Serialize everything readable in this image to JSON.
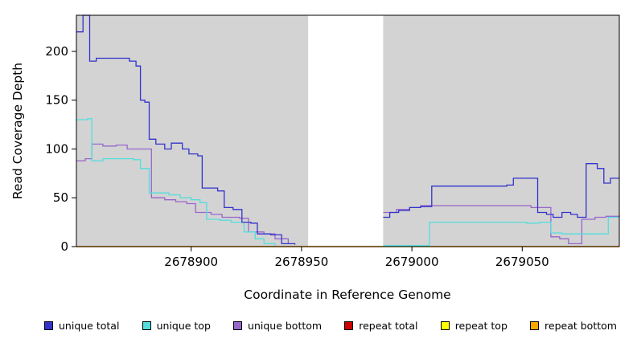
{
  "chart_data": {
    "type": "line",
    "title": "",
    "xlabel": "Coordinate in Reference Genome",
    "ylabel": "Read Coverage Depth",
    "xlim": [
      2678848,
      2679094
    ],
    "ylim": [
      0,
      237
    ],
    "x_ticks": [
      2678900,
      2678950,
      2679000,
      2679050
    ],
    "y_ticks": [
      0,
      50,
      100,
      150,
      200
    ],
    "plot_bg": "#d3d3d3",
    "gap_region": [
      2678953,
      2678987
    ],
    "grid": false,
    "legend_position": "bottom",
    "series": [
      {
        "name": "repeat total",
        "color": "#cc0000",
        "points": [
          [
            2678848,
            0
          ],
          [
            2679094,
            0
          ]
        ]
      },
      {
        "name": "repeat top",
        "color": "#ffff00",
        "points": [
          [
            2678848,
            0
          ],
          [
            2679094,
            0
          ]
        ]
      },
      {
        "name": "repeat bottom",
        "color": "#ffa500",
        "points": [
          [
            2678848,
            0
          ],
          [
            2679094,
            0
          ]
        ]
      },
      {
        "name": "unique bottom",
        "color": "#9966cc",
        "points": [
          [
            2678848,
            88
          ],
          [
            2678852,
            90
          ],
          [
            2678855,
            105
          ],
          [
            2678860,
            103
          ],
          [
            2678866,
            104
          ],
          [
            2678871,
            100
          ],
          [
            2678880,
            100
          ],
          [
            2678882,
            50
          ],
          [
            2678888,
            48
          ],
          [
            2678893,
            46
          ],
          [
            2678898,
            44
          ],
          [
            2678902,
            35
          ],
          [
            2678909,
            33
          ],
          [
            2678914,
            30
          ],
          [
            2678922,
            29
          ],
          [
            2678926,
            15
          ],
          [
            2678933,
            13
          ],
          [
            2678938,
            8
          ],
          [
            2678944,
            3
          ],
          [
            2678953,
            null
          ],
          [
            2678987,
            35
          ],
          [
            2678993,
            38
          ],
          [
            2678999,
            40
          ],
          [
            2679004,
            42
          ],
          [
            2679049,
            42
          ],
          [
            2679054,
            40
          ],
          [
            2679061,
            40
          ],
          [
            2679063,
            10
          ],
          [
            2679067,
            8
          ],
          [
            2679071,
            3
          ],
          [
            2679077,
            28
          ],
          [
            2679083,
            30
          ],
          [
            2679088,
            31
          ],
          [
            2679094,
            32
          ]
        ]
      },
      {
        "name": "unique top",
        "color": "#55dddd",
        "points": [
          [
            2678848,
            130
          ],
          [
            2678853,
            131
          ],
          [
            2678855,
            88
          ],
          [
            2678860,
            90
          ],
          [
            2678874,
            89
          ],
          [
            2678877,
            80
          ],
          [
            2678881,
            55
          ],
          [
            2678890,
            53
          ],
          [
            2678895,
            50
          ],
          [
            2678900,
            48
          ],
          [
            2678904,
            45
          ],
          [
            2678907,
            28
          ],
          [
            2678913,
            27
          ],
          [
            2678918,
            25
          ],
          [
            2678924,
            15
          ],
          [
            2678929,
            8
          ],
          [
            2678933,
            3
          ],
          [
            2678938,
            1
          ],
          [
            2678953,
            null
          ],
          [
            2678987,
            1
          ],
          [
            2679006,
            1
          ],
          [
            2679008,
            25
          ],
          [
            2679048,
            25
          ],
          [
            2679052,
            24
          ],
          [
            2679058,
            25
          ],
          [
            2679063,
            14
          ],
          [
            2679068,
            13
          ],
          [
            2679086,
            13
          ],
          [
            2679089,
            30
          ],
          [
            2679094,
            30
          ]
        ]
      },
      {
        "name": "unique total",
        "color": "#3333cc",
        "points": [
          [
            2678848,
            220
          ],
          [
            2678851,
            237
          ],
          [
            2678854,
            190
          ],
          [
            2678857,
            193
          ],
          [
            2678872,
            190
          ],
          [
            2678875,
            185
          ],
          [
            2678877,
            150
          ],
          [
            2678879,
            148
          ],
          [
            2678881,
            110
          ],
          [
            2678884,
            105
          ],
          [
            2678888,
            100
          ],
          [
            2678891,
            106
          ],
          [
            2678896,
            100
          ],
          [
            2678899,
            95
          ],
          [
            2678903,
            93
          ],
          [
            2678905,
            60
          ],
          [
            2678912,
            57
          ],
          [
            2678915,
            40
          ],
          [
            2678919,
            38
          ],
          [
            2678923,
            25
          ],
          [
            2678927,
            24
          ],
          [
            2678930,
            13
          ],
          [
            2678936,
            12
          ],
          [
            2678941,
            3
          ],
          [
            2678947,
            2
          ],
          [
            2678953,
            null
          ],
          [
            2678987,
            30
          ],
          [
            2678990,
            35
          ],
          [
            2678994,
            37
          ],
          [
            2678999,
            40
          ],
          [
            2679004,
            41
          ],
          [
            2679009,
            62
          ],
          [
            2679043,
            63
          ],
          [
            2679046,
            70
          ],
          [
            2679055,
            70
          ],
          [
            2679057,
            35
          ],
          [
            2679061,
            33
          ],
          [
            2679064,
            30
          ],
          [
            2679068,
            35
          ],
          [
            2679072,
            33
          ],
          [
            2679075,
            30
          ],
          [
            2679079,
            85
          ],
          [
            2679084,
            80
          ],
          [
            2679087,
            65
          ],
          [
            2679090,
            70
          ],
          [
            2679094,
            70
          ]
        ]
      }
    ],
    "legend": [
      {
        "label": "unique total",
        "color": "#3333cc"
      },
      {
        "label": "unique top",
        "color": "#55dddd"
      },
      {
        "label": "unique bottom",
        "color": "#9966cc"
      },
      {
        "label": "repeat total",
        "color": "#cc0000"
      },
      {
        "label": "repeat top",
        "color": "#ffff00"
      },
      {
        "label": "repeat bottom",
        "color": "#ffa500"
      }
    ]
  }
}
